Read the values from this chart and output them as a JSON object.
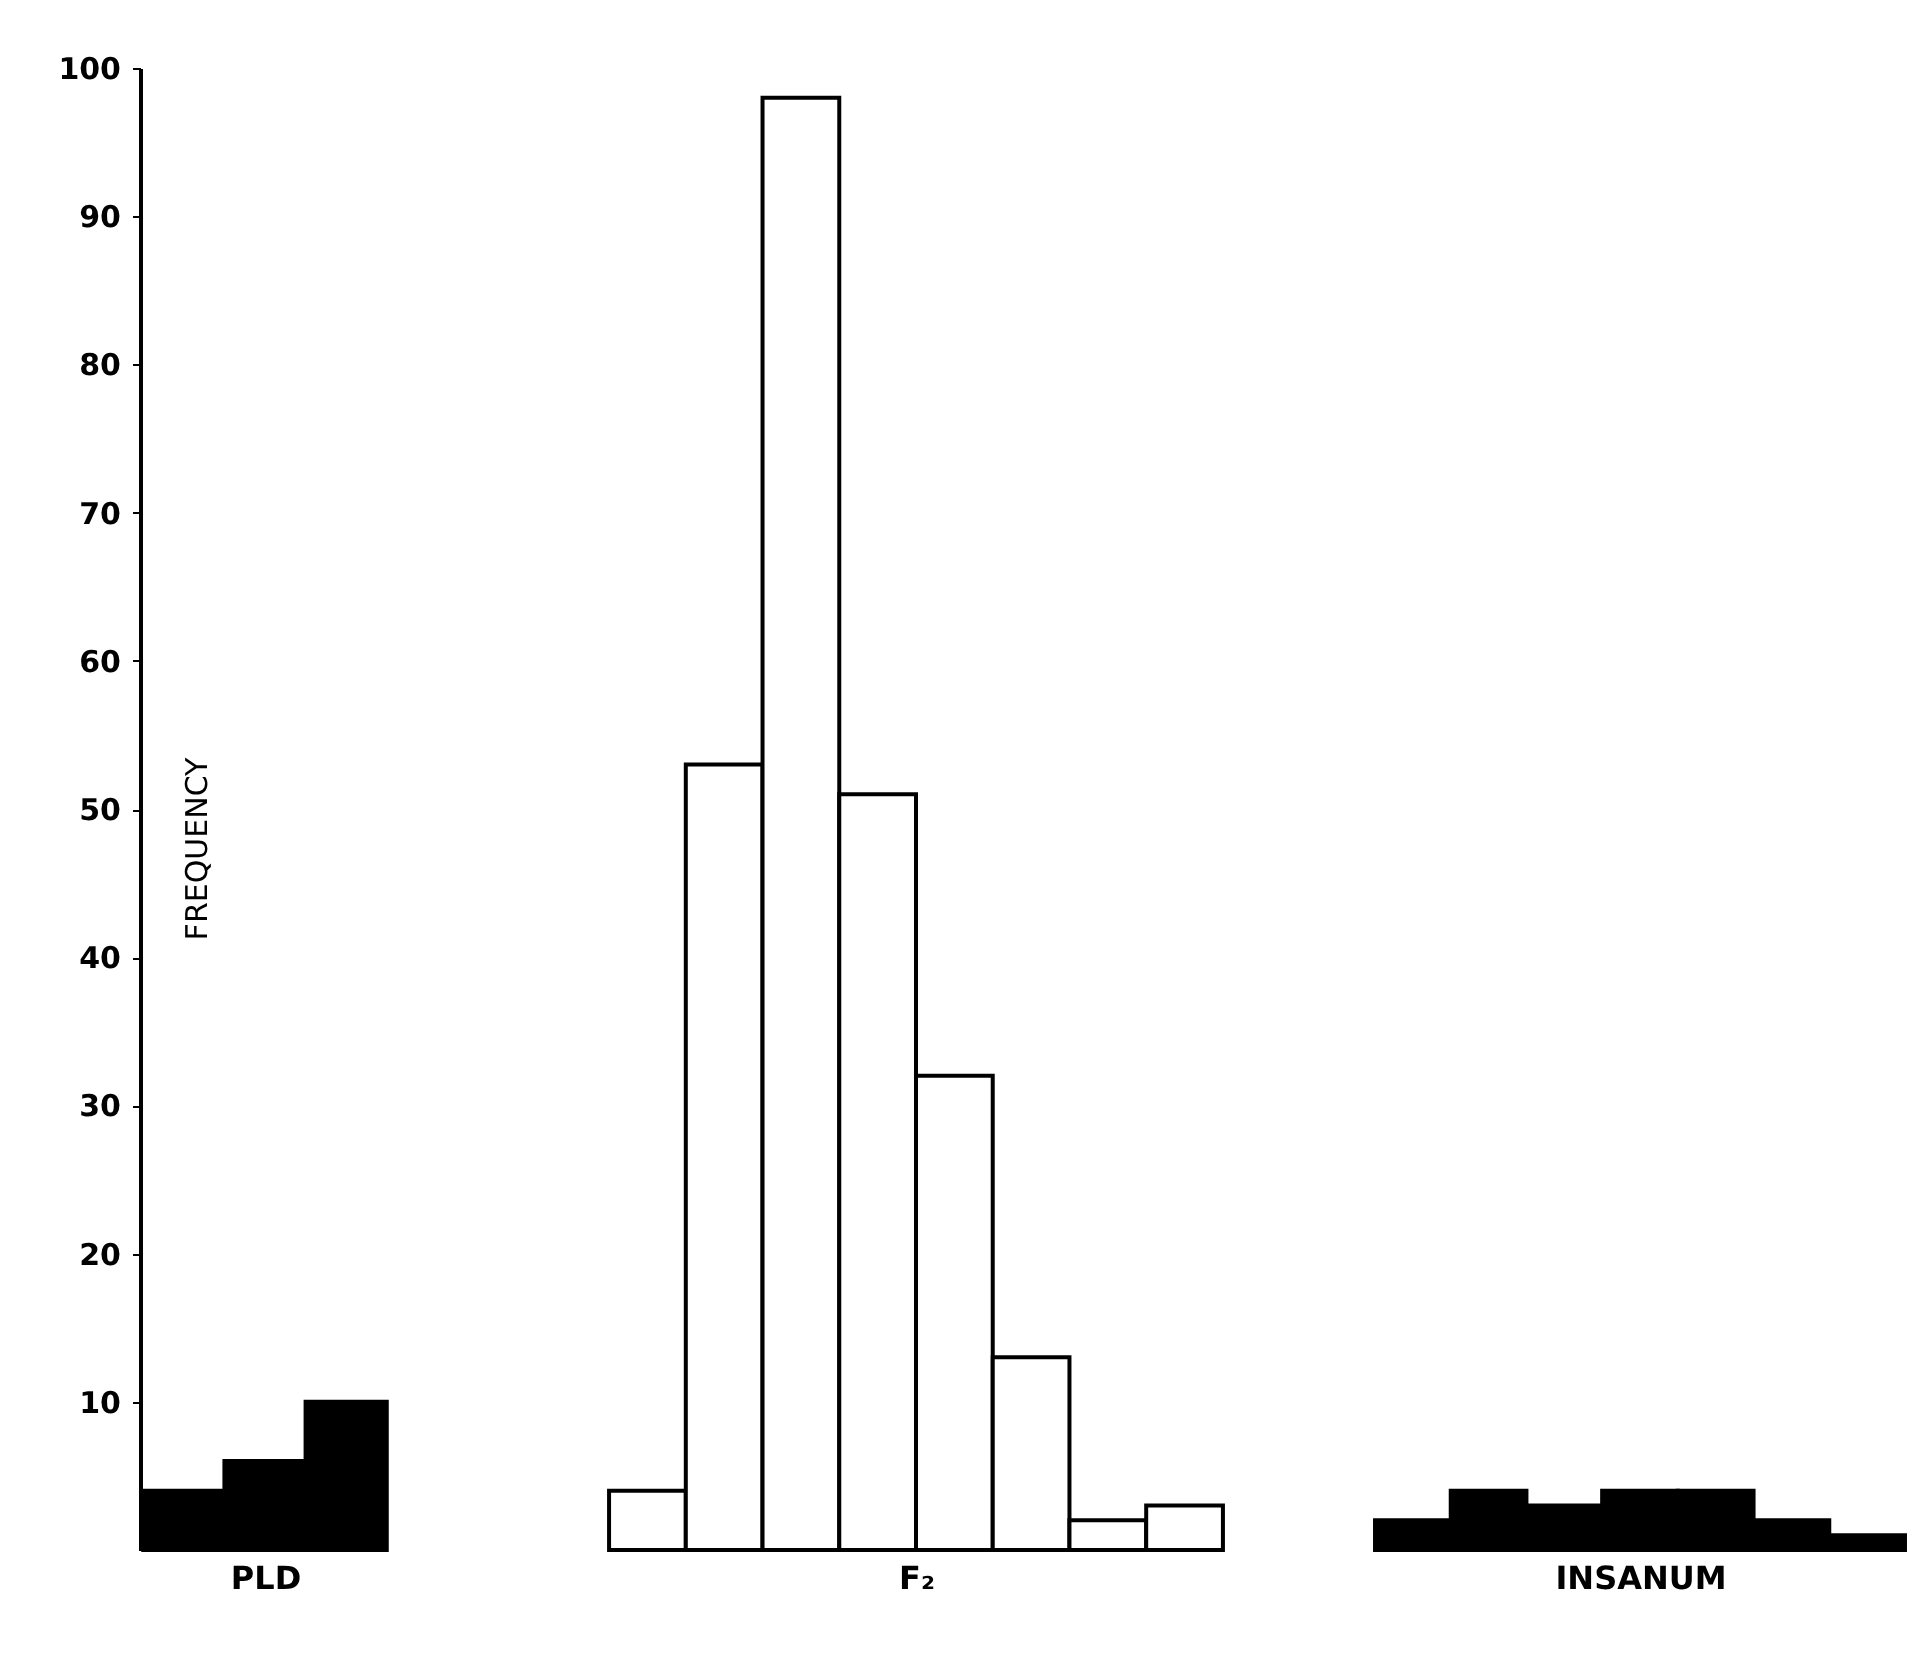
{
  "chart_data": [
    {
      "type": "bar",
      "categories": [
        null,
        null,
        null
      ],
      "values": [
        4,
        6,
        10
      ],
      "color": "#000000",
      "xlabel": "PLD",
      "ylabel": "FREQUENCY",
      "ylim": [
        0,
        100
      ],
      "yticks": [
        10,
        20,
        30,
        40,
        50,
        60,
        70,
        80,
        90,
        100
      ],
      "tick_labels": "y"
    },
    {
      "type": "bar",
      "categories": [
        null,
        null,
        null,
        null,
        null,
        null,
        null,
        null
      ],
      "values": [
        4,
        53,
        98,
        51,
        32,
        13,
        2,
        3
      ],
      "color": "#ffffff",
      "xlabel": "F₂",
      "ylim": [
        0,
        100
      ],
      "tick_labels": false
    },
    {
      "type": "bar",
      "categories": [
        null,
        null,
        null,
        null,
        null,
        null,
        null
      ],
      "values": [
        2,
        4,
        3,
        4,
        4,
        2,
        1
      ],
      "color": "#000000",
      "xlabel": "INSANUM",
      "ylim": [
        0,
        100
      ],
      "tick_labels": false
    }
  ]
}
